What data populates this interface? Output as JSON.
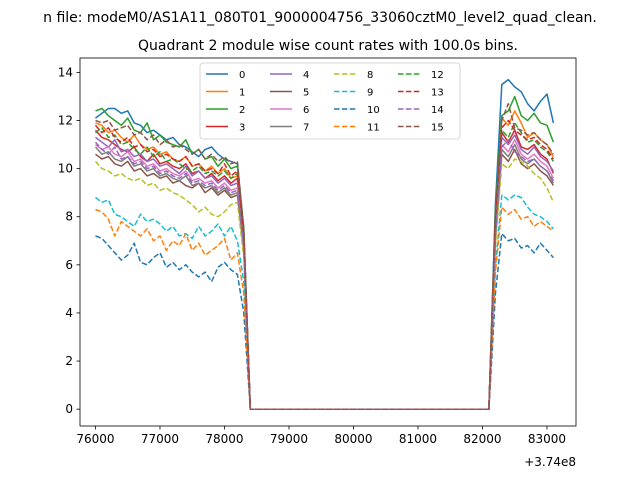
{
  "chart_data": {
    "type": "line",
    "suptitle": "n file: modeM0/AS1A11_080T01_9000004756_33060cztM0_level2_quad_clean.",
    "title": "Quadrant 2 module wise count rates with 100.0s bins.",
    "xlabel": "",
    "ylabel": "",
    "x_offset_label": "+3.74e8",
    "xlim": [
      75760,
      83450
    ],
    "ylim": [
      -0.7,
      14.6
    ],
    "xticks": [
      76000,
      77000,
      78000,
      79000,
      80000,
      81000,
      82000,
      83000
    ],
    "yticks": [
      0,
      2,
      4,
      6,
      8,
      10,
      12,
      14
    ],
    "legend_position": "upper center",
    "legend_columns": 4,
    "x": [
      76000,
      76100,
      76200,
      76300,
      76400,
      76500,
      76600,
      76700,
      76800,
      76900,
      77000,
      77100,
      77200,
      77300,
      77400,
      77500,
      77600,
      77700,
      77800,
      77900,
      78000,
      78100,
      78200,
      78300,
      78400,
      78500,
      78600,
      78700,
      78800,
      78900,
      79000,
      79100,
      79200,
      79300,
      79400,
      79500,
      79600,
      79700,
      79800,
      79900,
      80000,
      80100,
      80200,
      80300,
      80400,
      80500,
      80600,
      80700,
      80800,
      80900,
      81000,
      81100,
      81200,
      81300,
      81400,
      81500,
      81600,
      81700,
      81800,
      81900,
      82000,
      82100,
      82200,
      82300,
      82400,
      82500,
      82600,
      82700,
      82800,
      82900,
      83000,
      83100
    ],
    "series": [
      {
        "name": "0",
        "color": "#1f77b4",
        "dashed": false,
        "values": [
          12.1,
          12.3,
          12.5,
          12.5,
          12.3,
          12.4,
          11.9,
          11.8,
          11.5,
          11.6,
          11.4,
          11.2,
          11.3,
          11.0,
          10.9,
          10.7,
          10.5,
          10.8,
          10.9,
          10.6,
          10.4,
          10.3,
          10.2,
          7.5,
          0,
          0,
          0,
          0,
          0,
          0,
          0,
          0,
          0,
          0,
          0,
          0,
          0,
          0,
          0,
          0,
          0,
          0,
          0,
          0,
          0,
          0,
          0,
          0,
          0,
          0,
          0,
          0,
          0,
          0,
          0,
          0,
          0,
          0,
          0,
          0,
          0,
          0,
          8.5,
          13.5,
          13.7,
          13.4,
          13.2,
          12.7,
          12.4,
          12.8,
          13.1,
          11.9
        ]
      },
      {
        "name": "1",
        "color": "#ff7f0e",
        "dashed": false,
        "values": [
          11.9,
          11.8,
          11.5,
          11.6,
          11.3,
          11.1,
          11.4,
          11.0,
          10.8,
          10.9,
          10.6,
          10.7,
          10.4,
          10.3,
          10.5,
          10.1,
          10.2,
          9.9,
          10.1,
          9.8,
          10.0,
          9.6,
          9.7,
          7.2,
          0,
          0,
          0,
          0,
          0,
          0,
          0,
          0,
          0,
          0,
          0,
          0,
          0,
          0,
          0,
          0,
          0,
          0,
          0,
          0,
          0,
          0,
          0,
          0,
          0,
          0,
          0,
          0,
          0,
          0,
          0,
          0,
          0,
          0,
          0,
          0,
          0,
          0,
          7.6,
          12.1,
          11.8,
          12.4,
          11.9,
          11.3,
          11.5,
          11.2,
          11.0,
          10.5
        ]
      },
      {
        "name": "2",
        "color": "#2ca02c",
        "dashed": false,
        "values": [
          12.4,
          12.5,
          12.2,
          12.0,
          11.8,
          12.1,
          11.6,
          11.5,
          11.9,
          11.2,
          11.4,
          11.1,
          11.0,
          10.9,
          11.2,
          10.6,
          10.8,
          10.4,
          10.5,
          10.1,
          10.4,
          10.0,
          10.1,
          7.4,
          0,
          0,
          0,
          0,
          0,
          0,
          0,
          0,
          0,
          0,
          0,
          0,
          0,
          0,
          0,
          0,
          0,
          0,
          0,
          0,
          0,
          0,
          0,
          0,
          0,
          0,
          0,
          0,
          0,
          0,
          0,
          0,
          0,
          0,
          0,
          0,
          0,
          0,
          8.3,
          12.2,
          12.4,
          13.0,
          12.2,
          12.0,
          12.3,
          11.9,
          11.8,
          11.1
        ]
      },
      {
        "name": "3",
        "color": "#d62728",
        "dashed": false,
        "values": [
          11.6,
          11.3,
          11.2,
          11.0,
          10.8,
          10.7,
          10.9,
          10.5,
          10.3,
          10.6,
          10.2,
          10.3,
          10.1,
          10.0,
          10.2,
          9.8,
          9.9,
          9.6,
          9.8,
          9.5,
          9.7,
          9.4,
          9.6,
          7.0,
          0,
          0,
          0,
          0,
          0,
          0,
          0,
          0,
          0,
          0,
          0,
          0,
          0,
          0,
          0,
          0,
          0,
          0,
          0,
          0,
          0,
          0,
          0,
          0,
          0,
          0,
          0,
          0,
          0,
          0,
          0,
          0,
          0,
          0,
          0,
          0,
          0,
          0,
          7.5,
          11.5,
          11.1,
          11.6,
          10.9,
          10.8,
          11.0,
          10.6,
          10.4,
          9.8
        ]
      },
      {
        "name": "4",
        "color": "#9467bd",
        "dashed": false,
        "values": [
          11.3,
          11.1,
          10.9,
          11.2,
          10.7,
          10.8,
          10.5,
          10.6,
          10.3,
          10.4,
          10.1,
          10.2,
          10.0,
          9.8,
          10.1,
          9.7,
          9.9,
          9.6,
          9.7,
          9.4,
          9.6,
          9.3,
          9.4,
          6.9,
          0,
          0,
          0,
          0,
          0,
          0,
          0,
          0,
          0,
          0,
          0,
          0,
          0,
          0,
          0,
          0,
          0,
          0,
          0,
          0,
          0,
          0,
          0,
          0,
          0,
          0,
          0,
          0,
          0,
          0,
          0,
          0,
          0,
          0,
          0,
          0,
          0,
          0,
          7.4,
          11.3,
          11.0,
          11.4,
          10.8,
          10.6,
          10.9,
          10.5,
          10.3,
          9.9
        ]
      },
      {
        "name": "5",
        "color": "#8c564b",
        "dashed": false,
        "values": [
          10.6,
          10.4,
          10.5,
          10.2,
          10.1,
          10.3,
          9.9,
          10.0,
          9.7,
          9.8,
          9.6,
          9.7,
          9.4,
          9.5,
          9.3,
          9.2,
          9.4,
          9.0,
          9.2,
          8.9,
          9.1,
          8.8,
          8.9,
          6.6,
          0,
          0,
          0,
          0,
          0,
          0,
          0,
          0,
          0,
          0,
          0,
          0,
          0,
          0,
          0,
          0,
          0,
          0,
          0,
          0,
          0,
          0,
          0,
          0,
          0,
          0,
          0,
          0,
          0,
          0,
          0,
          0,
          0,
          0,
          0,
          0,
          0,
          0,
          7.0,
          10.6,
          10.3,
          10.8,
          10.2,
          10.0,
          10.2,
          9.9,
          9.7,
          9.3
        ]
      },
      {
        "name": "6",
        "color": "#e377c2",
        "dashed": false,
        "values": [
          11.0,
          10.8,
          10.9,
          10.6,
          10.5,
          10.7,
          10.3,
          10.4,
          10.1,
          10.2,
          9.9,
          10.0,
          9.8,
          9.7,
          9.9,
          9.5,
          9.6,
          9.4,
          9.5,
          9.2,
          9.4,
          9.1,
          9.2,
          6.8,
          0,
          0,
          0,
          0,
          0,
          0,
          0,
          0,
          0,
          0,
          0,
          0,
          0,
          0,
          0,
          0,
          0,
          0,
          0,
          0,
          0,
          0,
          0,
          0,
          0,
          0,
          0,
          0,
          0,
          0,
          0,
          0,
          0,
          0,
          0,
          0,
          0,
          0,
          7.3,
          11.0,
          10.7,
          11.2,
          10.6,
          10.4,
          10.6,
          10.3,
          10.1,
          9.6
        ]
      },
      {
        "name": "7",
        "color": "#7f7f7f",
        "dashed": false,
        "values": [
          10.9,
          10.6,
          10.7,
          10.4,
          10.3,
          10.5,
          10.1,
          10.2,
          9.9,
          10.0,
          9.7,
          9.8,
          9.6,
          9.5,
          9.7,
          9.3,
          9.4,
          9.2,
          9.3,
          9.0,
          9.2,
          8.9,
          9.0,
          6.7,
          0,
          0,
          0,
          0,
          0,
          0,
          0,
          0,
          0,
          0,
          0,
          0,
          0,
          0,
          0,
          0,
          0,
          0,
          0,
          0,
          0,
          0,
          0,
          0,
          0,
          0,
          0,
          0,
          0,
          0,
          0,
          0,
          0,
          0,
          0,
          0,
          0,
          0,
          7.1,
          10.8,
          10.5,
          11.0,
          10.4,
          10.2,
          10.4,
          10.1,
          9.9,
          9.4
        ]
      },
      {
        "name": "8",
        "color": "#bcbd22",
        "dashed": true,
        "values": [
          10.3,
          10.0,
          9.9,
          9.7,
          9.8,
          9.6,
          9.5,
          9.6,
          9.3,
          9.4,
          9.1,
          9.2,
          9.0,
          8.9,
          8.7,
          8.5,
          8.2,
          8.4,
          8.1,
          8.0,
          8.2,
          8.5,
          8.6,
          6.3,
          0,
          0,
          0,
          0,
          0,
          0,
          0,
          0,
          0,
          0,
          0,
          0,
          0,
          0,
          0,
          0,
          0,
          0,
          0,
          0,
          0,
          0,
          0,
          0,
          0,
          0,
          0,
          0,
          0,
          0,
          0,
          0,
          0,
          0,
          0,
          0,
          0,
          0,
          6.8,
          10.2,
          10.0,
          10.4,
          10.3,
          10.1,
          9.8,
          9.6,
          9.2,
          8.6
        ]
      },
      {
        "name": "9",
        "color": "#17becf",
        "dashed": true,
        "values": [
          8.8,
          8.6,
          8.7,
          8.1,
          8.0,
          7.8,
          7.6,
          8.1,
          7.8,
          7.9,
          7.7,
          7.4,
          7.6,
          7.2,
          7.3,
          7.1,
          7.6,
          7.2,
          7.4,
          7.7,
          7.2,
          7.6,
          7.0,
          5.3,
          0,
          0,
          0,
          0,
          0,
          0,
          0,
          0,
          0,
          0,
          0,
          0,
          0,
          0,
          0,
          0,
          0,
          0,
          0,
          0,
          0,
          0,
          0,
          0,
          0,
          0,
          0,
          0,
          0,
          0,
          0,
          0,
          0,
          0,
          0,
          0,
          0,
          0,
          5.9,
          8.9,
          8.7,
          8.9,
          8.8,
          8.4,
          8.1,
          8.0,
          7.8,
          7.5
        ]
      },
      {
        "name": "10",
        "color": "#1f77b4",
        "dashed": true,
        "values": [
          7.2,
          7.1,
          6.8,
          6.5,
          6.2,
          6.4,
          6.9,
          6.1,
          6.0,
          6.3,
          6.5,
          5.9,
          6.1,
          5.8,
          6.0,
          5.7,
          5.5,
          5.7,
          5.3,
          5.9,
          6.1,
          5.8,
          5.6,
          4.0,
          0,
          0,
          0,
          0,
          0,
          0,
          0,
          0,
          0,
          0,
          0,
          0,
          0,
          0,
          0,
          0,
          0,
          0,
          0,
          0,
          0,
          0,
          0,
          0,
          0,
          0,
          0,
          0,
          0,
          0,
          0,
          0,
          0,
          0,
          0,
          0,
          0,
          0,
          4.8,
          7.3,
          7.0,
          7.1,
          6.7,
          6.8,
          6.5,
          6.9,
          6.6,
          6.3
        ]
      },
      {
        "name": "11",
        "color": "#ff7f0e",
        "dashed": true,
        "values": [
          8.3,
          8.2,
          7.9,
          7.2,
          7.8,
          7.6,
          7.4,
          7.2,
          7.5,
          7.0,
          7.2,
          6.6,
          7.0,
          6.8,
          7.3,
          6.6,
          6.9,
          6.4,
          6.6,
          6.8,
          7.1,
          6.2,
          6.5,
          4.8,
          0,
          0,
          0,
          0,
          0,
          0,
          0,
          0,
          0,
          0,
          0,
          0,
          0,
          0,
          0,
          0,
          0,
          0,
          0,
          0,
          0,
          0,
          0,
          0,
          0,
          0,
          0,
          0,
          0,
          0,
          0,
          0,
          0,
          0,
          0,
          0,
          0,
          0,
          5.7,
          8.4,
          8.1,
          8.3,
          7.9,
          8.0,
          7.6,
          7.8,
          7.6,
          7.4
        ]
      },
      {
        "name": "12",
        "color": "#2ca02c",
        "dashed": true,
        "values": [
          11.5,
          11.7,
          11.3,
          11.4,
          11.0,
          11.1,
          10.8,
          10.6,
          10.9,
          10.5,
          10.7,
          10.3,
          10.4,
          10.2,
          10.0,
          9.9,
          10.1,
          9.8,
          9.9,
          9.7,
          9.9,
          9.6,
          9.8,
          7.1,
          0,
          0,
          0,
          0,
          0,
          0,
          0,
          0,
          0,
          0,
          0,
          0,
          0,
          0,
          0,
          0,
          0,
          0,
          0,
          0,
          0,
          0,
          0,
          0,
          0,
          0,
          0,
          0,
          0,
          0,
          0,
          0,
          0,
          0,
          0,
          0,
          0,
          0,
          7.8,
          11.6,
          11.3,
          11.9,
          11.5,
          11.1,
          11.2,
          10.9,
          10.7,
          10.3
        ]
      },
      {
        "name": "13",
        "color": "#d62728",
        "dashed": true,
        "values": [
          11.8,
          11.5,
          11.7,
          11.3,
          11.1,
          11.3,
          10.9,
          11.0,
          10.7,
          10.8,
          10.5,
          10.6,
          10.4,
          10.3,
          10.5,
          10.1,
          10.2,
          9.9,
          10.0,
          9.8,
          10.2,
          9.7,
          9.9,
          7.2,
          0,
          0,
          0,
          0,
          0,
          0,
          0,
          0,
          0,
          0,
          0,
          0,
          0,
          0,
          0,
          0,
          0,
          0,
          0,
          0,
          0,
          0,
          0,
          0,
          0,
          0,
          0,
          0,
          0,
          0,
          0,
          0,
          0,
          0,
          0,
          0,
          0,
          0,
          7.9,
          11.7,
          12.0,
          11.6,
          11.4,
          11.2,
          11.3,
          11.0,
          10.8,
          10.4
        ]
      },
      {
        "name": "14",
        "color": "#9467bd",
        "dashed": true,
        "values": [
          11.1,
          10.8,
          10.6,
          10.9,
          10.4,
          10.5,
          10.2,
          10.3,
          10.0,
          10.1,
          9.8,
          9.9,
          9.7,
          9.6,
          9.8,
          9.4,
          9.5,
          9.3,
          9.4,
          9.1,
          9.3,
          9.0,
          9.1,
          6.7,
          0,
          0,
          0,
          0,
          0,
          0,
          0,
          0,
          0,
          0,
          0,
          0,
          0,
          0,
          0,
          0,
          0,
          0,
          0,
          0,
          0,
          0,
          0,
          0,
          0,
          0,
          0,
          0,
          0,
          0,
          0,
          0,
          0,
          0,
          0,
          0,
          0,
          0,
          7.2,
          10.9,
          11.2,
          10.7,
          10.5,
          10.3,
          10.4,
          10.1,
          9.9,
          9.5
        ]
      },
      {
        "name": "15",
        "color": "#8c564b",
        "dashed": true,
        "values": [
          12.0,
          11.9,
          12.0,
          11.6,
          11.7,
          11.8,
          11.4,
          11.5,
          11.2,
          11.4,
          11.0,
          11.2,
          10.9,
          11.0,
          10.8,
          10.6,
          10.8,
          10.4,
          10.6,
          10.3,
          10.5,
          10.2,
          10.3,
          7.5,
          0,
          0,
          0,
          0,
          0,
          0,
          0,
          0,
          0,
          0,
          0,
          0,
          0,
          0,
          0,
          0,
          0,
          0,
          0,
          0,
          0,
          0,
          0,
          0,
          0,
          0,
          0,
          0,
          0,
          0,
          0,
          0,
          0,
          0,
          0,
          0,
          0,
          0,
          8.1,
          12.0,
          12.7,
          11.7,
          11.6,
          11.4,
          11.5,
          11.2,
          11.0,
          10.6
        ]
      }
    ]
  }
}
